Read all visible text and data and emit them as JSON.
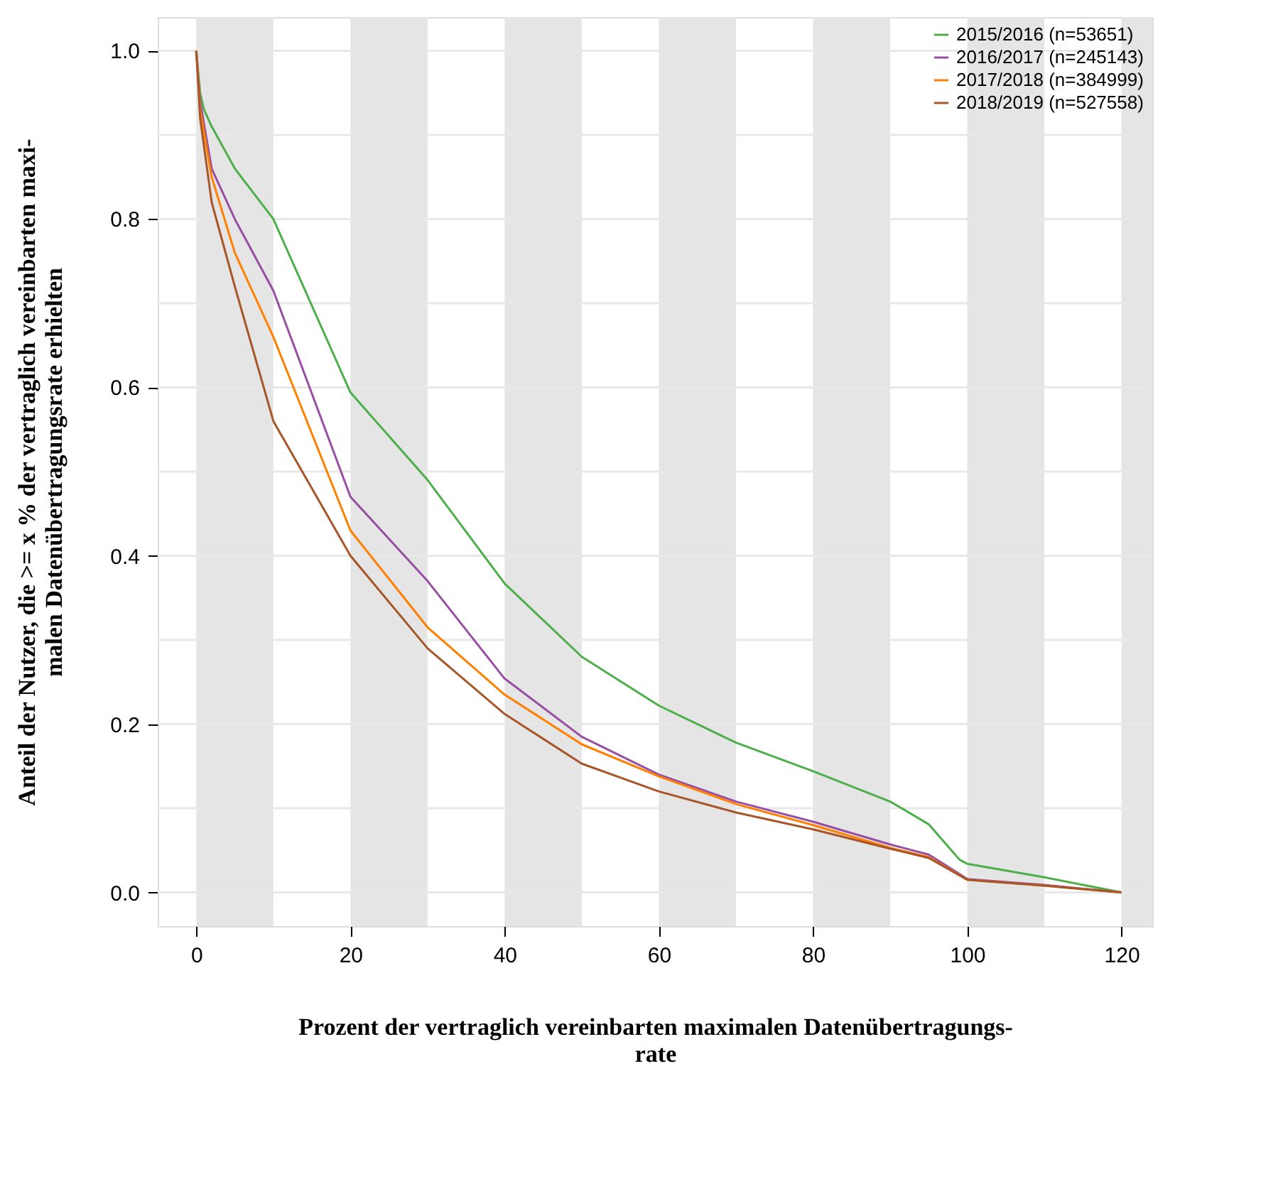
{
  "chart_data": {
    "type": "line",
    "xlabel": "Prozent der vertraglich vereinbarten maximalen Datenübertragungs-\nrate",
    "ylabel": "Anteil der Nutzer, die >= x % der vertraglich vereinbarten maxi-\nmalen Datenübertragungsrate erhielten",
    "xlim": [
      -5,
      124
    ],
    "ylim": [
      -0.04,
      1.04
    ],
    "xticks": [
      0,
      20,
      40,
      60,
      80,
      100,
      120
    ],
    "yticks": [
      {
        "value": 0.0,
        "label": "0.0"
      },
      {
        "value": 0.1,
        "label": null
      },
      {
        "value": 0.2,
        "label": "0.2"
      },
      {
        "value": 0.3,
        "label": null
      },
      {
        "value": 0.4,
        "label": "0.4"
      },
      {
        "value": 0.5,
        "label": null
      },
      {
        "value": 0.6,
        "label": "0.6"
      },
      {
        "value": 0.7,
        "label": null
      },
      {
        "value": 0.8,
        "label": "0.8"
      },
      {
        "value": 0.9,
        "label": null
      },
      {
        "value": 1.0,
        "label": "1.0"
      }
    ],
    "grid": "y",
    "legend": "top right",
    "line_style": "solid",
    "marker": "none",
    "bands": [
      {
        "axis": "x",
        "from": 0,
        "to": 10,
        "color": "#e5e5e5"
      },
      {
        "axis": "x",
        "from": 20,
        "to": 30,
        "color": "#e5e5e5"
      },
      {
        "axis": "x",
        "from": 40,
        "to": 50,
        "color": "#e5e5e5"
      },
      {
        "axis": "x",
        "from": 60,
        "to": 70,
        "color": "#e5e5e5"
      },
      {
        "axis": "x",
        "from": 80,
        "to": 90,
        "color": "#e5e5e5"
      },
      {
        "axis": "x",
        "from": 100,
        "to": 110,
        "color": "#e5e5e5"
      },
      {
        "axis": "x",
        "from": 120,
        "to": 124,
        "color": "#e5e5e5"
      }
    ],
    "series": [
      {
        "name": "2015/2016 (n=53651)",
        "color": "#4daf4a",
        "x": [
          0,
          0.5,
          1,
          2,
          5,
          10,
          20,
          30,
          40,
          50,
          60,
          70,
          80,
          90,
          95,
          97,
          99,
          100,
          110,
          120
        ],
        "values": [
          1.0,
          0.95,
          0.93,
          0.91,
          0.86,
          0.8,
          0.594,
          0.49,
          0.367,
          0.28,
          0.222,
          0.178,
          0.144,
          0.108,
          0.081,
          0.06,
          0.039,
          0.034,
          0.018,
          0.0
        ]
      },
      {
        "name": "2016/2017 (n=245143)",
        "color": "#984ea3",
        "x": [
          0,
          0.5,
          2,
          5,
          10,
          20,
          30,
          40,
          50,
          60,
          70,
          80,
          90,
          95,
          100,
          110,
          120
        ],
        "values": [
          1.0,
          0.94,
          0.86,
          0.8,
          0.715,
          0.47,
          0.37,
          0.254,
          0.185,
          0.14,
          0.108,
          0.084,
          0.057,
          0.045,
          0.016,
          0.009,
          0.0
        ]
      },
      {
        "name": "2017/2018 (n=384999)",
        "color": "#ff7f00",
        "x": [
          0,
          0.5,
          2,
          5,
          10,
          20,
          30,
          40,
          50,
          60,
          70,
          80,
          90,
          95,
          100,
          110,
          120
        ],
        "values": [
          1.0,
          0.93,
          0.85,
          0.76,
          0.66,
          0.43,
          0.315,
          0.235,
          0.176,
          0.138,
          0.105,
          0.08,
          0.053,
          0.042,
          0.015,
          0.008,
          0.0
        ]
      },
      {
        "name": "2018/2019 (n=527558)",
        "color": "#a65628",
        "x": [
          0,
          0.5,
          2,
          5,
          10,
          20,
          30,
          40,
          50,
          60,
          70,
          80,
          90,
          95,
          100,
          110,
          120
        ],
        "values": [
          1.0,
          0.92,
          0.82,
          0.72,
          0.56,
          0.4,
          0.29,
          0.212,
          0.153,
          0.12,
          0.095,
          0.075,
          0.052,
          0.041,
          0.015,
          0.008,
          0.0
        ]
      }
    ]
  }
}
